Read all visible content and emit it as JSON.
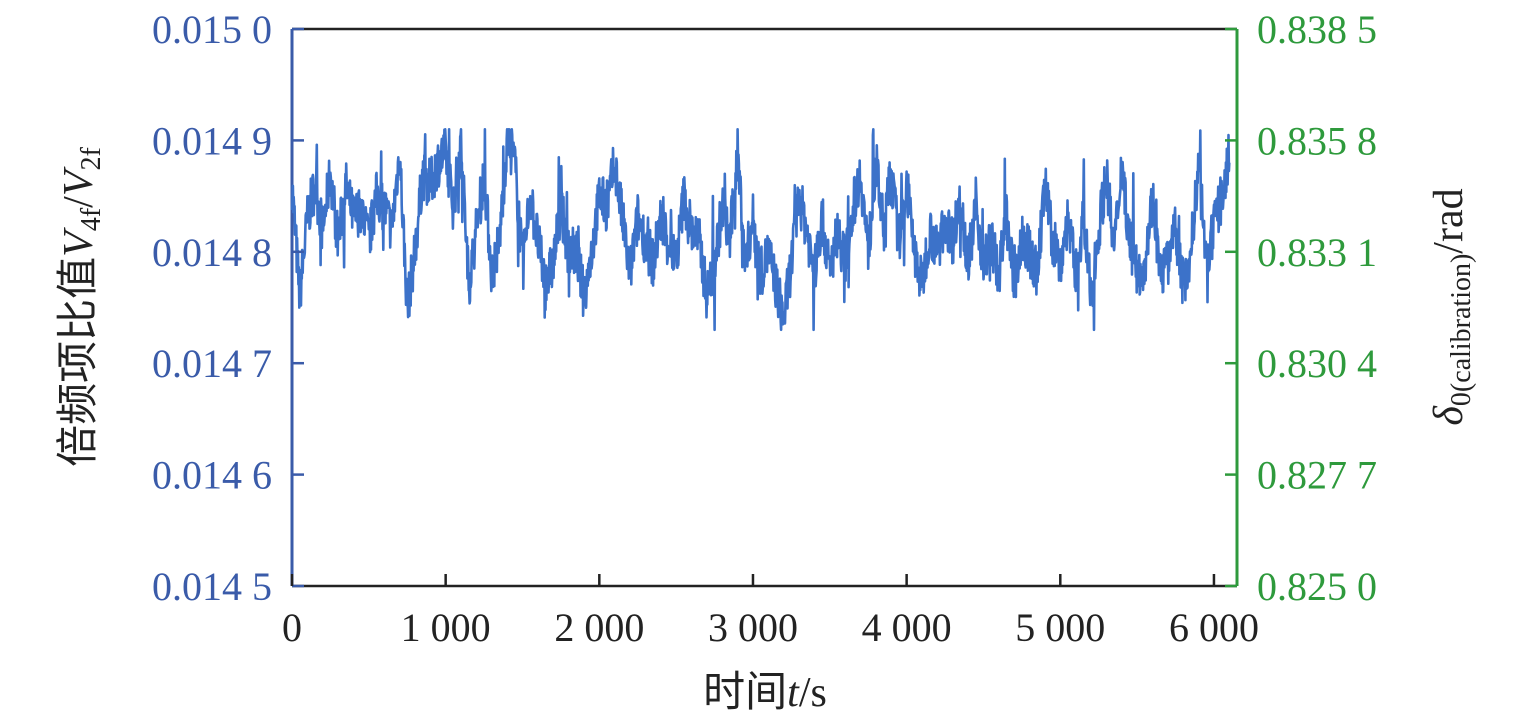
{
  "chart_data": {
    "type": "line",
    "xlabel_prefix": "时间",
    "xlabel_var": "t",
    "xlabel_unit": "/s",
    "ylabel_prefix": "倍频项比值",
    "ylabel_v": "V",
    "ylabel_sub1": "4f",
    "ylabel_slash": "/",
    "ylabel_sub2": "2f",
    "y2label_delta": "δ",
    "y2label_sub": "0(calibration)",
    "y2label_unit": "/rad",
    "xlim": [
      0,
      6150
    ],
    "ylim": [
      0.0145,
      0.015
    ],
    "y2lim": [
      0.825,
      0.8385
    ],
    "xticks": [
      0,
      1000,
      2000,
      3000,
      4000,
      5000,
      6000
    ],
    "xtick_labels": [
      "0",
      "1 000",
      "2 000",
      "3 000",
      "4 000",
      "5 000",
      "6 000"
    ],
    "yticks": [
      0.0145,
      0.0146,
      0.0147,
      0.0148,
      0.0149,
      0.015
    ],
    "ytick_labels": [
      "0.014 5",
      "0.014 6",
      "0.014 7",
      "0.014 8",
      "0.014 9",
      "0.015 0"
    ],
    "y2ticks": [
      0.825,
      0.8277,
      0.8304,
      0.8331,
      0.8358,
      0.8385
    ],
    "y2tick_labels": [
      "0.825 0",
      "0.827 7",
      "0.830 4",
      "0.833 1",
      "0.835 8",
      "0.838 5"
    ],
    "series": [
      {
        "x": [
          0,
          50,
          100,
          150,
          200,
          250,
          300,
          350,
          400,
          450,
          500,
          550,
          600,
          650,
          700,
          750,
          800,
          850,
          900,
          950,
          1000,
          1050,
          1100,
          1150,
          1200,
          1250,
          1300,
          1350,
          1400,
          1450,
          1500,
          1550,
          1600,
          1650,
          1700,
          1750,
          1800,
          1850,
          1900,
          1950,
          2000,
          2050,
          2100,
          2150,
          2200,
          2250,
          2300,
          2350,
          2400,
          2450,
          2500,
          2550,
          2600,
          2650,
          2700,
          2750,
          2800,
          2850,
          2900,
          2950,
          3000,
          3050,
          3100,
          3150,
          3200,
          3250,
          3300,
          3350,
          3400,
          3450,
          3500,
          3550,
          3600,
          3650,
          3700,
          3750,
          3800,
          3850,
          3900,
          3950,
          4000,
          4050,
          4100,
          4150,
          4200,
          4250,
          4300,
          4350,
          4400,
          4450,
          4500,
          4550,
          4600,
          4650,
          4700,
          4750,
          4800,
          4850,
          4900,
          4950,
          5000,
          5050,
          5100,
          5150,
          5200,
          5250,
          5300,
          5350,
          5400,
          5450,
          5500,
          5550,
          5600,
          5650,
          5700,
          5750,
          5800,
          5850,
          5900,
          5950,
          6000,
          6050,
          6100
        ],
        "values": [
          0.01486,
          0.01476,
          0.01483,
          0.01486,
          0.01482,
          0.01487,
          0.01481,
          0.01486,
          0.01483,
          0.01484,
          0.01481,
          0.01485,
          0.01484,
          0.01482,
          0.01489,
          0.01475,
          0.0148,
          0.01487,
          0.01486,
          0.01488,
          0.01489,
          0.01484,
          0.0149,
          0.01477,
          0.01482,
          0.01487,
          0.01478,
          0.01481,
          0.0149,
          0.01488,
          0.01479,
          0.01485,
          0.01481,
          0.01477,
          0.01479,
          0.01484,
          0.0148,
          0.0148,
          0.01476,
          0.0148,
          0.01485,
          0.01484,
          0.01488,
          0.01483,
          0.01478,
          0.01483,
          0.01481,
          0.01479,
          0.01483,
          0.01481,
          0.01479,
          0.01485,
          0.01482,
          0.01481,
          0.01476,
          0.01479,
          0.01484,
          0.01481,
          0.01489,
          0.01479,
          0.01483,
          0.01478,
          0.0148,
          0.01477,
          0.01474,
          0.01479,
          0.01485,
          0.01482,
          0.01478,
          0.01483,
          0.01478,
          0.01482,
          0.01479,
          0.01484,
          0.01487,
          0.0148,
          0.01488,
          0.01482,
          0.01487,
          0.01481,
          0.01486,
          0.0148,
          0.01477,
          0.01482,
          0.0148,
          0.01483,
          0.01481,
          0.01485,
          0.01479,
          0.01484,
          0.01479,
          0.01481,
          0.01478,
          0.01483,
          0.01477,
          0.01481,
          0.0148,
          0.01478,
          0.01486,
          0.01481,
          0.01479,
          0.01483,
          0.01478,
          0.01483,
          0.01476,
          0.01482,
          0.01487,
          0.0148,
          0.01488,
          0.01481,
          0.01478,
          0.01479,
          0.01485,
          0.01478,
          0.01479,
          0.01482,
          0.01477,
          0.0148,
          0.01488,
          0.01479,
          0.01482,
          0.01485,
          0.01488
        ],
        "color": "#3c72c9"
      }
    ],
    "grid": false,
    "colors": {
      "left_axis": "#3a5ba9",
      "right_axis": "#2e9a3c",
      "series": "#3c72c9",
      "frame": "#222222"
    }
  }
}
